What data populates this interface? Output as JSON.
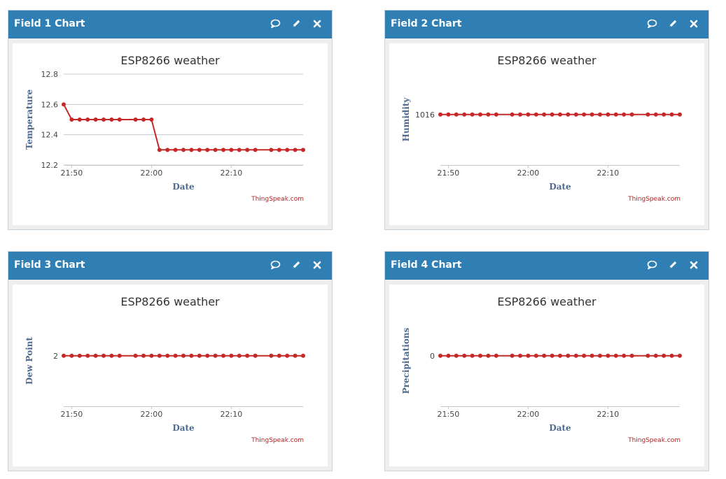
{
  "panels": [
    {
      "header_title": "Field 1 Chart",
      "chart_data": {
        "type": "line",
        "title": "ESP8266 weather",
        "xlabel": "Date",
        "ylabel": "Temperature",
        "x_ticks": [
          "21:50",
          "22:00",
          "22:10"
        ],
        "x_tick_times": [
          "21:50",
          "22:00",
          "22:10"
        ],
        "xlim": [
          "21:49",
          "22:19"
        ],
        "y_ticks": [
          "12.2",
          "12.4",
          "12.6",
          "12.8"
        ],
        "ylim": [
          12.2,
          12.8
        ],
        "grid": true,
        "credit": "ThingSpeak.com",
        "line_color": "#c62828",
        "series": [
          {
            "x": [
              "21:49",
              "21:50",
              "21:51",
              "21:52",
              "21:53",
              "21:54",
              "21:55",
              "21:56",
              "21:58",
              "21:59",
              "22:00",
              "22:01",
              "22:02",
              "22:03",
              "22:04",
              "22:05",
              "22:06",
              "22:07",
              "22:08",
              "22:09",
              "22:10",
              "22:11",
              "22:12",
              "22:13",
              "22:15",
              "22:16",
              "22:17",
              "22:18",
              "22:19"
            ],
            "y": [
              12.6,
              12.5,
              12.5,
              12.5,
              12.5,
              12.5,
              12.5,
              12.5,
              12.5,
              12.5,
              12.5,
              12.3,
              12.3,
              12.3,
              12.3,
              12.3,
              12.3,
              12.3,
              12.3,
              12.3,
              12.3,
              12.3,
              12.3,
              12.3,
              12.3,
              12.3,
              12.3,
              12.3,
              12.3
            ]
          }
        ]
      }
    },
    {
      "header_title": "Field 2 Chart",
      "chart_data": {
        "type": "line",
        "title": "ESP8266 weather",
        "xlabel": "Date",
        "ylabel": "Humidity",
        "x_ticks": [
          "21:50",
          "22:00",
          "22:10"
        ],
        "x_tick_times": [
          "21:50",
          "22:00",
          "22:10"
        ],
        "xlim": [
          "21:49",
          "22:19"
        ],
        "y_ticks": [
          "1016"
        ],
        "ylim": [
          1015,
          1016.8
        ],
        "grid": false,
        "credit": "ThingSpeak.com",
        "line_color": "#c62828",
        "series": [
          {
            "x": [
              "21:49",
              "21:50",
              "21:51",
              "21:52",
              "21:53",
              "21:54",
              "21:55",
              "21:56",
              "21:58",
              "21:59",
              "22:00",
              "22:01",
              "22:02",
              "22:03",
              "22:04",
              "22:05",
              "22:06",
              "22:07",
              "22:08",
              "22:09",
              "22:10",
              "22:11",
              "22:12",
              "22:13",
              "22:15",
              "22:16",
              "22:17",
              "22:18",
              "22:19"
            ],
            "y": [
              1016,
              1016,
              1016,
              1016,
              1016,
              1016,
              1016,
              1016,
              1016,
              1016,
              1016,
              1016,
              1016,
              1016,
              1016,
              1016,
              1016,
              1016,
              1016,
              1016,
              1016,
              1016,
              1016,
              1016,
              1016,
              1016,
              1016,
              1016,
              1016
            ]
          }
        ]
      }
    },
    {
      "header_title": "Field 3 Chart",
      "chart_data": {
        "type": "line",
        "title": "ESP8266 weather",
        "xlabel": "Date",
        "ylabel": "Dew Point",
        "x_ticks": [
          "21:50",
          "22:00",
          "22:10"
        ],
        "x_tick_times": [
          "21:50",
          "22:00",
          "22:10"
        ],
        "xlim": [
          "21:49",
          "22:19"
        ],
        "y_ticks": [
          "2"
        ],
        "ylim": [
          1,
          2.8
        ],
        "grid": false,
        "credit": "ThingSpeak.com",
        "line_color": "#c62828",
        "series": [
          {
            "x": [
              "21:49",
              "21:50",
              "21:51",
              "21:52",
              "21:53",
              "21:54",
              "21:55",
              "21:56",
              "21:58",
              "21:59",
              "22:00",
              "22:01",
              "22:02",
              "22:03",
              "22:04",
              "22:05",
              "22:06",
              "22:07",
              "22:08",
              "22:09",
              "22:10",
              "22:11",
              "22:12",
              "22:13",
              "22:15",
              "22:16",
              "22:17",
              "22:18",
              "22:19"
            ],
            "y": [
              2,
              2,
              2,
              2,
              2,
              2,
              2,
              2,
              2,
              2,
              2,
              2,
              2,
              2,
              2,
              2,
              2,
              2,
              2,
              2,
              2,
              2,
              2,
              2,
              2,
              2,
              2,
              2,
              2
            ]
          }
        ]
      }
    },
    {
      "header_title": "Field 4 Chart",
      "chart_data": {
        "type": "line",
        "title": "ESP8266 weather",
        "xlabel": "Date",
        "ylabel": "Precipitations",
        "x_ticks": [
          "21:50",
          "22:00",
          "22:10"
        ],
        "x_tick_times": [
          "21:50",
          "22:00",
          "22:10"
        ],
        "xlim": [
          "21:49",
          "22:19"
        ],
        "y_ticks": [
          "0"
        ],
        "ylim": [
          -1,
          0.8
        ],
        "grid": false,
        "credit": "ThingSpeak.com",
        "line_color": "#c62828",
        "series": [
          {
            "x": [
              "21:49",
              "21:50",
              "21:51",
              "21:52",
              "21:53",
              "21:54",
              "21:55",
              "21:56",
              "21:58",
              "21:59",
              "22:00",
              "22:01",
              "22:02",
              "22:03",
              "22:04",
              "22:05",
              "22:06",
              "22:07",
              "22:08",
              "22:09",
              "22:10",
              "22:11",
              "22:12",
              "22:13",
              "22:15",
              "22:16",
              "22:17",
              "22:18",
              "22:19"
            ],
            "y": [
              0,
              0,
              0,
              0,
              0,
              0,
              0,
              0,
              0,
              0,
              0,
              0,
              0,
              0,
              0,
              0,
              0,
              0,
              0,
              0,
              0,
              0,
              0,
              0,
              0,
              0,
              0,
              0,
              0
            ]
          }
        ]
      }
    }
  ],
  "tools": {
    "comment_icon": "comment-icon",
    "edit_icon": "pencil-icon",
    "close_icon": "close-icon"
  }
}
